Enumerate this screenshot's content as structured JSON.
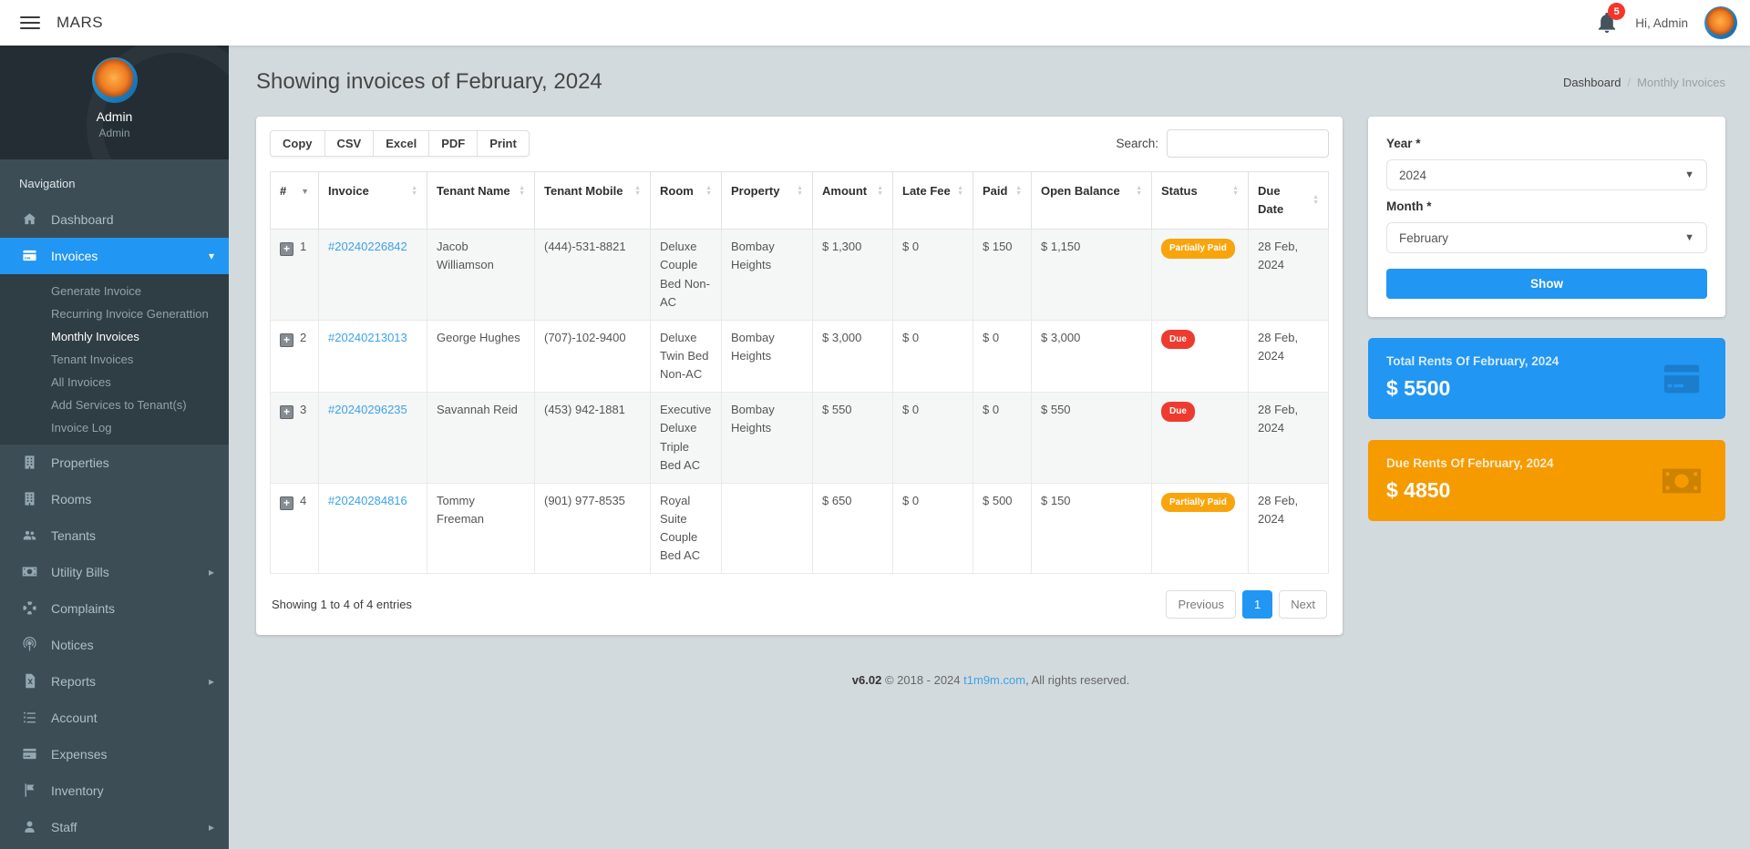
{
  "colors": {
    "accent": "#2196f3",
    "orange_card": "#f59b00",
    "badge_warning": "#f8a50d",
    "badge_danger": "#ee3b2f",
    "link": "#3ba3e8",
    "sidebar_bg": "#3d4d56",
    "submenu_bg": "#2f3d44"
  },
  "topbar": {
    "brand": "MARS",
    "greeting": "Hi, Admin",
    "notification_count": "5"
  },
  "sidebar": {
    "user": {
      "name": "Admin",
      "role": "Admin"
    },
    "nav_header": "Navigation",
    "items_top": [
      {
        "label": "Dashboard",
        "icon": "home-icon"
      },
      {
        "label": "Invoices",
        "icon": "credit-card-icon",
        "active": true,
        "expanded": true
      }
    ],
    "invoices_submenu": [
      {
        "label": "Generate Invoice"
      },
      {
        "label": "Recurring Invoice Generattion"
      },
      {
        "label": "Monthly Invoices",
        "active": true
      },
      {
        "label": "Tenant Invoices"
      },
      {
        "label": "All Invoices"
      },
      {
        "label": "Add Services to Tenant(s)"
      },
      {
        "label": "Invoice Log"
      }
    ],
    "items_bottom": [
      {
        "label": "Properties",
        "icon": "building-icon"
      },
      {
        "label": "Rooms",
        "icon": "building-icon"
      },
      {
        "label": "Tenants",
        "icon": "users-icon"
      },
      {
        "label": "Utility Bills",
        "icon": "money-bill-icon",
        "has_children": true
      },
      {
        "label": "Complaints",
        "icon": "life-ring-icon"
      },
      {
        "label": "Notices",
        "icon": "podcast-icon"
      },
      {
        "label": "Reports",
        "icon": "file-excel-icon",
        "has_children": true
      },
      {
        "label": "Account",
        "icon": "list-icon"
      },
      {
        "label": "Expenses",
        "icon": "credit-card-icon"
      },
      {
        "label": "Inventory",
        "icon": "flag-icon"
      },
      {
        "label": "Staff",
        "icon": "user-icon",
        "has_children": true
      }
    ]
  },
  "page": {
    "title": "Showing invoices of February, 2024",
    "breadcrumb": [
      "Dashboard",
      "Monthly Invoices"
    ]
  },
  "table": {
    "export_buttons": [
      {
        "label": "Copy"
      },
      {
        "label": "CSV"
      },
      {
        "label": "Excel"
      },
      {
        "label": "PDF"
      },
      {
        "label": "Print"
      }
    ],
    "search_label": "Search:",
    "columns": [
      {
        "label": "#",
        "sort": "desc"
      },
      {
        "label": "Invoice",
        "sort": "both"
      },
      {
        "label": "Tenant Name",
        "sort": "both"
      },
      {
        "label": "Tenant Mobile",
        "sort": "both"
      },
      {
        "label": "Room",
        "sort": "both"
      },
      {
        "label": "Property",
        "sort": "both"
      },
      {
        "label": "Amount",
        "sort": "both"
      },
      {
        "label": "Late Fee",
        "sort": "both"
      },
      {
        "label": "Paid",
        "sort": "both"
      },
      {
        "label": "Open Balance",
        "sort": "both"
      },
      {
        "label": "Status",
        "sort": "both"
      },
      {
        "label": "Due Date",
        "sort": "both"
      }
    ],
    "rows": [
      {
        "num": "1",
        "invoice": "#20240226842",
        "tenant": "Jacob Williamson",
        "mobile": "(444)-531-8821",
        "room": "Deluxe Couple Bed Non-AC",
        "property": "Bombay Heights",
        "amount": "$ 1,300",
        "late_fee": "$ 0",
        "paid": "$ 150",
        "open_balance": "$ 1,150",
        "status": "Partially Paid",
        "status_type": "warning",
        "due_date": "28 Feb, 2024"
      },
      {
        "num": "2",
        "invoice": "#20240213013",
        "tenant": "George Hughes",
        "mobile": "(707)-102-9400",
        "room": "Deluxe Twin Bed Non-AC",
        "property": "Bombay Heights",
        "amount": "$ 3,000",
        "late_fee": "$ 0",
        "paid": "$ 0",
        "open_balance": "$ 3,000",
        "status": "Due",
        "status_type": "danger",
        "due_date": "28 Feb, 2024"
      },
      {
        "num": "3",
        "invoice": "#20240296235",
        "tenant": "Savannah Reid",
        "mobile": "(453) 942-1881",
        "room": "Executive Deluxe Triple Bed AC",
        "property": "Bombay Heights",
        "amount": "$ 550",
        "late_fee": "$ 0",
        "paid": "$ 0",
        "open_balance": "$ 550",
        "status": "Due",
        "status_type": "danger",
        "due_date": "28 Feb, 2024"
      },
      {
        "num": "4",
        "invoice": "#20240284816",
        "tenant": "Tommy Freeman",
        "mobile": "(901) 977-8535",
        "room": "Royal Suite Couple Bed AC",
        "property": "",
        "amount": "$ 650",
        "late_fee": "$ 0",
        "paid": "$ 500",
        "open_balance": "$ 150",
        "status": "Partially Paid",
        "status_type": "warning",
        "due_date": "28 Feb, 2024"
      }
    ],
    "info": "Showing 1 to 4 of 4 entries",
    "pagination": {
      "previous": "Previous",
      "page": "1",
      "next": "Next"
    }
  },
  "filter": {
    "year_label": "Year *",
    "year_value": "2024",
    "month_label": "Month *",
    "month_value": "February",
    "show_button": "Show"
  },
  "cards": {
    "total": {
      "title": "Total Rents Of February, 2024",
      "amount": "$ 5500",
      "icon": "credit-card-icon"
    },
    "due": {
      "title": "Due Rents Of February, 2024",
      "amount": "$ 4850",
      "icon": "money-bill-icon"
    }
  },
  "footer": {
    "version": "v6.02",
    "copyright": "© 2018 - 2024",
    "link": "t1m9m.com",
    "suffix": ", All rights reserved."
  }
}
